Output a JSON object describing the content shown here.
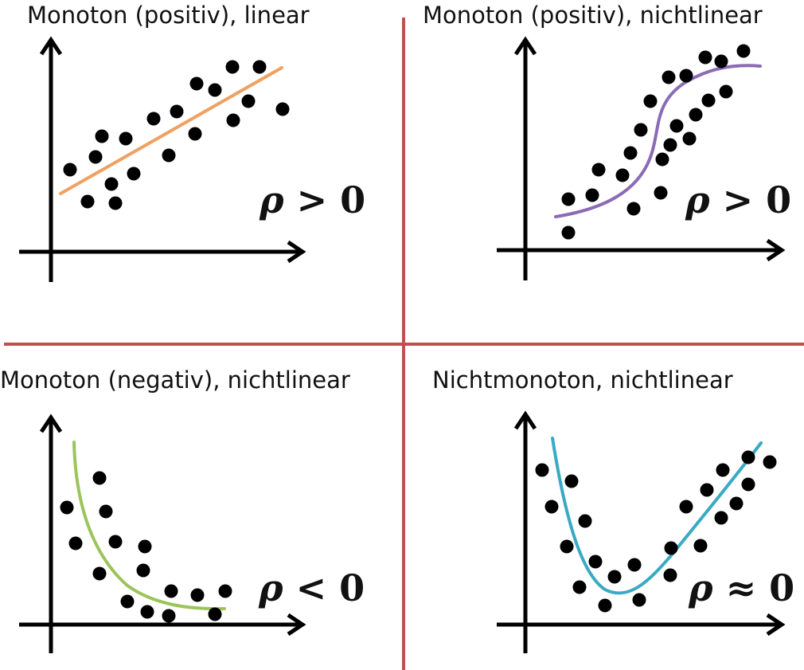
{
  "panels": [
    {
      "title": "Monoton (positiv), linear",
      "rho_symbol": "ρ",
      "rho_relation": ">",
      "rho_value": "0",
      "curve_color": "#F0A060",
      "points": [
        [
          88,
          213
        ],
        [
          110,
          253
        ],
        [
          120,
          197
        ],
        [
          128,
          171
        ],
        [
          140,
          231
        ],
        [
          145,
          255
        ],
        [
          158,
          174
        ],
        [
          168,
          218
        ],
        [
          193,
          149
        ],
        [
          212,
          195
        ],
        [
          222,
          140
        ],
        [
          245,
          168
        ],
        [
          247,
          105
        ],
        [
          270,
          113
        ],
        [
          293,
          151
        ],
        [
          292,
          84
        ],
        [
          312,
          127
        ],
        [
          326,
          84
        ],
        [
          355,
          137
        ]
      ]
    },
    {
      "title": "Monoton (positiv), nichtlinear",
      "rho_symbol": "ρ",
      "rho_relation": ">",
      "rho_value": "0",
      "curve_color": "#8B6BB5",
      "points": [
        [
          714,
          250
        ],
        [
          714,
          292
        ],
        [
          744,
          245
        ],
        [
          752,
          213
        ],
        [
          782,
          220
        ],
        [
          792,
          192
        ],
        [
          796,
          262
        ],
        [
          805,
          163
        ],
        [
          817,
          127
        ],
        [
          830,
          242
        ],
        [
          832,
          200
        ],
        [
          840,
          97
        ],
        [
          842,
          182
        ],
        [
          850,
          158
        ],
        [
          862,
          95
        ],
        [
          866,
          174
        ],
        [
          874,
          144
        ],
        [
          886,
          72
        ],
        [
          890,
          126
        ],
        [
          906,
          77
        ],
        [
          912,
          115
        ],
        [
          934,
          64
        ]
      ]
    },
    {
      "title": "Monoton (negativ), nichtlinear",
      "rho_symbol": "ρ",
      "rho_relation": "<",
      "rho_value": "0",
      "curve_color": "#9BC45A",
      "points": [
        [
          84,
          637
        ],
        [
          95,
          682
        ],
        [
          125,
          600
        ],
        [
          133,
          642
        ],
        [
          145,
          680
        ],
        [
          125,
          720
        ],
        [
          160,
          755
        ],
        [
          182,
          686
        ],
        [
          180,
          716
        ],
        [
          185,
          768
        ],
        [
          212,
          773
        ],
        [
          215,
          742
        ],
        [
          248,
          747
        ],
        [
          270,
          771
        ],
        [
          283,
          742
        ]
      ]
    },
    {
      "title": "Nichtmonoton, nichtlinear",
      "rho_symbol": "ρ",
      "rho_relation": "≈",
      "rho_value": "0",
      "curve_color": "#3AAAC3",
      "points": [
        [
          681,
          590
        ],
        [
          693,
          636
        ],
        [
          718,
          604
        ],
        [
          735,
          654
        ],
        [
          712,
          686
        ],
        [
          728,
          737
        ],
        [
          748,
          705
        ],
        [
          760,
          760
        ],
        [
          772,
          724
        ],
        [
          797,
          709
        ],
        [
          803,
          753
        ],
        [
          842,
          722
        ],
        [
          843,
          688
        ],
        [
          862,
          636
        ],
        [
          880,
          685
        ],
        [
          888,
          615
        ],
        [
          906,
          650
        ],
        [
          908,
          590
        ],
        [
          925,
          632
        ],
        [
          940,
          608
        ],
        [
          940,
          574
        ],
        [
          967,
          580
        ]
      ]
    }
  ],
  "colors": {
    "divider": "#C0504D",
    "axis": "#000000",
    "dot": "#000000"
  }
}
